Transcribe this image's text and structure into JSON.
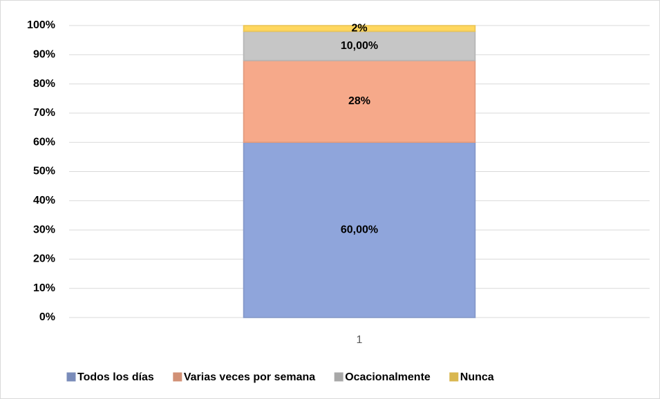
{
  "chart_data": {
    "type": "stacked_bar",
    "categories": [
      "1"
    ],
    "series": [
      {
        "name": "Todos los días",
        "color": "#8fa5db",
        "values": [
          60
        ],
        "value_labels": [
          "60,00%"
        ]
      },
      {
        "name": "Varias veces por semana",
        "color": "#f6a98a",
        "values": [
          28
        ],
        "value_labels": [
          "28%"
        ]
      },
      {
        "name": "Ocacionalmente",
        "color": "#c6c6c6",
        "values": [
          10
        ],
        "value_labels": [
          "10,00%"
        ]
      },
      {
        "name": "Nunca",
        "color": "#ffd75e",
        "values": [
          2
        ],
        "value_labels": [
          "2%"
        ]
      }
    ],
    "ylim": [
      0,
      100
    ],
    "yticks": [
      {
        "value": 0,
        "label": "0%"
      },
      {
        "value": 10,
        "label": "10%"
      },
      {
        "value": 20,
        "label": "20%"
      },
      {
        "value": 30,
        "label": "30%"
      },
      {
        "value": 40,
        "label": "40%"
      },
      {
        "value": 50,
        "label": "50%"
      },
      {
        "value": 60,
        "label": "60%"
      },
      {
        "value": 70,
        "label": "70%"
      },
      {
        "value": 80,
        "label": "80%"
      },
      {
        "value": 90,
        "label": "90%"
      },
      {
        "value": 100,
        "label": "100%"
      }
    ],
    "grid": true,
    "legend": "bottom"
  }
}
